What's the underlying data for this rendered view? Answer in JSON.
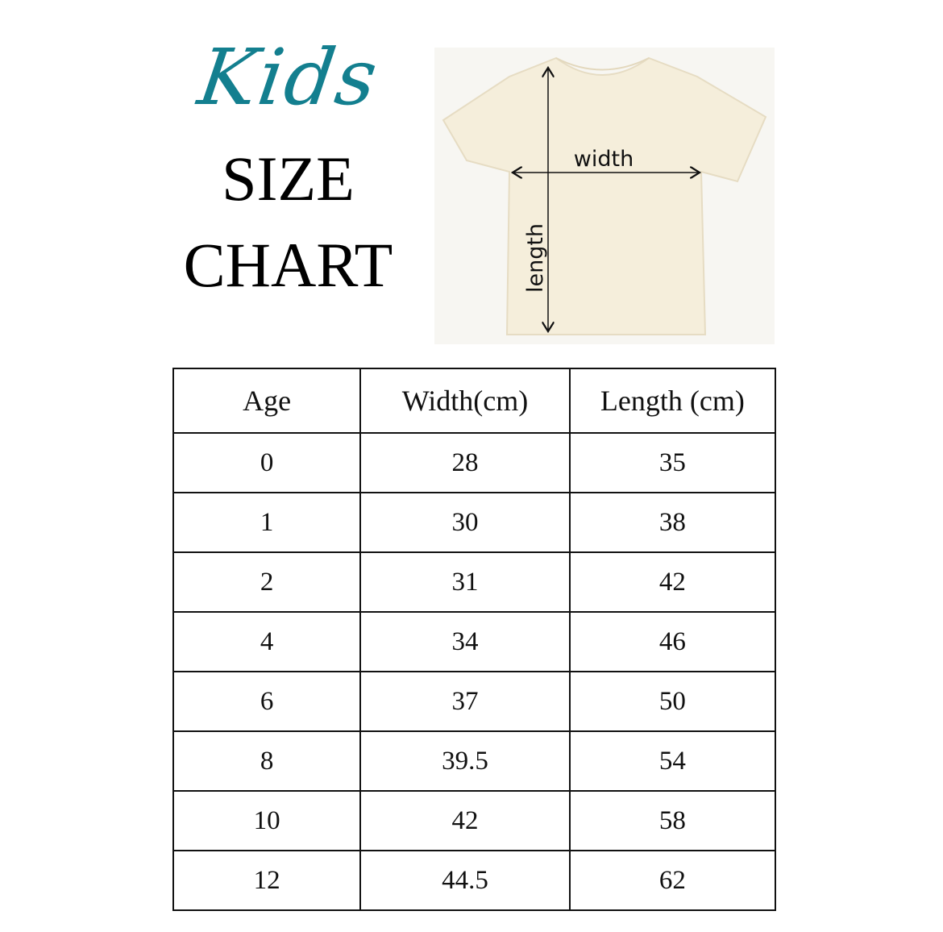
{
  "title": {
    "script": "Kids",
    "line1": "SIZE",
    "line2": "CHART"
  },
  "diagram": {
    "width_label": "width",
    "length_label": "length",
    "shirt_color": "#f5eedb"
  },
  "table": {
    "headers": [
      "Age",
      "Width(cm)",
      "Length (cm)"
    ],
    "rows": [
      [
        "0",
        "28",
        "35"
      ],
      [
        "1",
        "30",
        "38"
      ],
      [
        "2",
        "31",
        "42"
      ],
      [
        "4",
        "34",
        "46"
      ],
      [
        "6",
        "37",
        "50"
      ],
      [
        "8",
        "39.5",
        "54"
      ],
      [
        "10",
        "42",
        "58"
      ],
      [
        "12",
        "44.5",
        "62"
      ]
    ]
  }
}
